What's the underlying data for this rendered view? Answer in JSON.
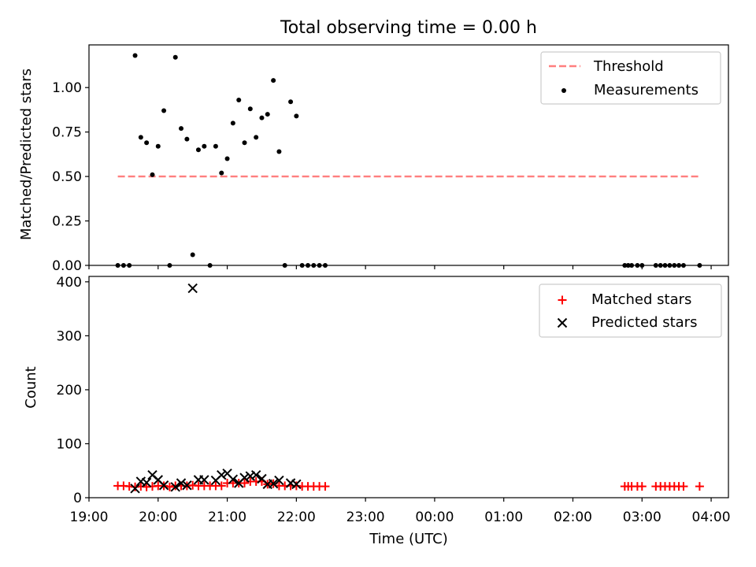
{
  "chart_data": [
    {
      "type": "scatter",
      "title": "Total observing time = 0.00 h",
      "xlabel": "",
      "ylabel": "Matched/Predicted stars",
      "ylim": [
        0,
        1.24
      ],
      "yticks": [
        "0.00",
        "0.25",
        "0.50",
        "0.75",
        "1.00"
      ],
      "legend_position": "top-right",
      "threshold": {
        "name": "Threshold",
        "value": 0.5,
        "x_start": 19.417,
        "x_end": 27.85,
        "color": "#ff7f7f"
      },
      "series": [
        {
          "name": "Measurements",
          "color": "#000000",
          "x": [
            19.417,
            19.5,
            19.583,
            19.667,
            19.75,
            19.833,
            19.917,
            20.0,
            20.083,
            20.167,
            20.25,
            20.333,
            20.417,
            20.5,
            20.583,
            20.667,
            20.75,
            20.833,
            20.917,
            21.0,
            21.083,
            21.167,
            21.25,
            21.333,
            21.417,
            21.5,
            21.583,
            21.667,
            21.75,
            21.833,
            21.917,
            22.0,
            22.083,
            22.167,
            22.25,
            22.333,
            22.417,
            26.75,
            26.8,
            26.85,
            26.933,
            27.0,
            27.2,
            27.267,
            27.333,
            27.4,
            27.467,
            27.533,
            27.6,
            27.833
          ],
          "y": [
            0.0,
            0.0,
            0.0,
            1.18,
            0.72,
            0.69,
            0.51,
            0.67,
            0.87,
            0.0,
            1.17,
            0.77,
            0.71,
            0.06,
            0.65,
            0.67,
            0.0,
            0.67,
            0.52,
            0.6,
            0.8,
            0.93,
            0.69,
            0.88,
            0.72,
            0.83,
            0.85,
            1.04,
            0.64,
            0.0,
            0.92,
            0.84,
            0.0,
            0.0,
            0.0,
            0.0,
            0.0,
            0.0,
            0.0,
            0.0,
            0.0,
            0.0,
            0.0,
            0.0,
            0.0,
            0.0,
            0.0,
            0.0,
            0.0,
            0.0
          ]
        }
      ]
    },
    {
      "type": "scatter",
      "title": "",
      "xlabel": "Time (UTC)",
      "ylabel": "Count",
      "xlim": [
        19.0,
        28.25
      ],
      "ylim": [
        0,
        410
      ],
      "xticks": [
        "19:00",
        "20:00",
        "21:00",
        "22:00",
        "23:00",
        "00:00",
        "01:00",
        "02:00",
        "03:00",
        "04:00"
      ],
      "yticks": [
        "0",
        "100",
        "200",
        "300",
        "400"
      ],
      "legend_position": "top-right",
      "series": [
        {
          "name": "Matched stars",
          "color": "#ff0000",
          "marker": "plus",
          "x": [
            19.417,
            19.5,
            19.583,
            19.667,
            19.75,
            19.833,
            19.917,
            20.0,
            20.083,
            20.167,
            20.25,
            20.333,
            20.417,
            20.5,
            20.583,
            20.667,
            20.75,
            20.833,
            20.917,
            21.0,
            21.083,
            21.167,
            21.25,
            21.333,
            21.417,
            21.5,
            21.583,
            21.667,
            21.75,
            21.833,
            21.917,
            22.0,
            22.083,
            22.167,
            22.25,
            22.333,
            22.417,
            26.75,
            26.8,
            26.85,
            26.933,
            27.0,
            27.2,
            27.267,
            27.333,
            27.4,
            27.467,
            27.533,
            27.6,
            27.833
          ],
          "y": [
            22,
            22,
            21,
            20,
            21,
            20,
            21,
            22,
            22,
            20,
            22,
            22,
            22,
            23,
            22,
            22,
            22,
            22,
            22,
            27,
            27,
            27,
            27,
            30,
            30,
            30,
            25,
            26,
            22,
            22,
            22,
            22,
            21,
            21,
            21,
            21,
            21,
            21,
            21,
            21,
            21,
            21,
            21,
            21,
            21,
            21,
            21,
            21,
            21,
            21
          ]
        },
        {
          "name": "Predicted stars",
          "color": "#000000",
          "marker": "x",
          "x": [
            19.667,
            19.75,
            19.833,
            19.917,
            20.0,
            20.083,
            20.25,
            20.333,
            20.417,
            20.5,
            20.583,
            20.667,
            20.833,
            20.917,
            21.0,
            21.083,
            21.167,
            21.25,
            21.333,
            21.417,
            21.5,
            21.583,
            21.667,
            21.75,
            21.917,
            22.0
          ],
          "y": [
            17,
            30,
            28,
            42,
            33,
            23,
            20,
            27,
            23,
            388,
            33,
            33,
            32,
            42,
            45,
            34,
            27,
            37,
            40,
            42,
            35,
            25,
            26,
            32,
            27,
            25
          ]
        }
      ]
    }
  ]
}
